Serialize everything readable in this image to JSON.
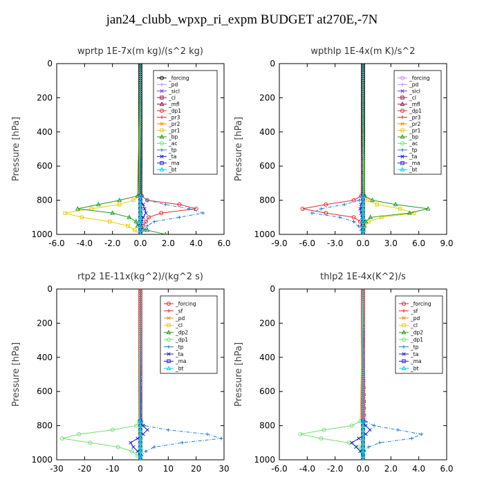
{
  "figure_title": "jan24_clubb_wpxp_ri_expm  BUDGET at270E,-7N",
  "colors": {
    "forcing": "#000000",
    "pd": "#c58cf0",
    "sicl": "#7a3ed8",
    "cl_top": "#8a1a4a",
    "mfl": "#8a1a4a",
    "dp1_top": "#e8242c",
    "pr3": "#e8242c",
    "pr2": "#f08a00",
    "pr1": "#e6cf00",
    "bp": "#1e9a1e",
    "ac": "#7fd87f",
    "tp": "#1e7fd0",
    "ta": "#1a1ad8",
    "ma": "#1a1ad8",
    "bt": "#00d8d8",
    "bottom_forcing": "#e8242c",
    "sf": "#e8242c",
    "bottom_pd": "#f08a00",
    "bottom_cl": "#e6cf00",
    "dp2": "#1e9a1e",
    "dp1": "#6fe06f",
    "bottom_tp": "#1e7fd0",
    "bottom_ta": "#1a1ad8"
  },
  "chart_data": [
    {
      "type": "line",
      "title": "wprtp   1E-7x(m kg)/(s^2 kg)",
      "ylabel": "Pressure [hPa]",
      "xlim": [
        -6,
        6
      ],
      "ylim": [
        1000,
        0
      ],
      "xticks": [
        "-6.0",
        "-4.0",
        "-2.0",
        "0.0",
        "2.0",
        "4.0",
        "6.0"
      ],
      "yticks": [
        "0",
        "200",
        "400",
        "600",
        "800",
        "1000"
      ],
      "legend_position": "top-right",
      "pressure": [
        775,
        800,
        825,
        850,
        875,
        900,
        925,
        950,
        975,
        1000
      ],
      "series": [
        {
          "name": "_forcing",
          "color_key": "forcing",
          "values": [
            0,
            0,
            0,
            0,
            0,
            0,
            0,
            0,
            0,
            0
          ]
        },
        {
          "name": "_pd",
          "color_key": "pd",
          "values": [
            0,
            0,
            0,
            0,
            0,
            0,
            0,
            0,
            0,
            0
          ]
        },
        {
          "name": "_sicl",
          "color_key": "sicl",
          "values": [
            0,
            0,
            0,
            0,
            0,
            0,
            0,
            0,
            0,
            0
          ]
        },
        {
          "name": "_cl",
          "color_key": "cl_top",
          "values": [
            0,
            0,
            0,
            0,
            0,
            0,
            0,
            0,
            0,
            0
          ]
        },
        {
          "name": "_mfl",
          "color_key": "mfl",
          "values": [
            0,
            0,
            0,
            0,
            0,
            0,
            0,
            0,
            0,
            0
          ]
        },
        {
          "name": "_dp1",
          "color_key": "dp1_top",
          "values": [
            0.1,
            0.5,
            2.8,
            4.0,
            1.5,
            0.6,
            0.4,
            0.2,
            0.1,
            0
          ]
        },
        {
          "name": "_pr3",
          "color_key": "pr3",
          "values": [
            0,
            0,
            0,
            0,
            0,
            0,
            0,
            0,
            0,
            0
          ]
        },
        {
          "name": "_pr2",
          "color_key": "pr2",
          "values": [
            0,
            0,
            0,
            0,
            0,
            0,
            0,
            0,
            0,
            0
          ]
        },
        {
          "name": "_pr1",
          "color_key": "pr1",
          "values": [
            -0.1,
            -0.5,
            -1.5,
            -3.5,
            -5.4,
            -4.2,
            -2.2,
            -0.9,
            -0.4,
            0
          ]
        },
        {
          "name": "_bp",
          "color_key": "bp",
          "values": [
            -0.2,
            -1.5,
            -3.0,
            -4.5,
            -2.0,
            -0.8,
            -0.3,
            -0.2,
            0.5,
            1.8
          ]
        },
        {
          "name": "_ac",
          "color_key": "ac",
          "values": [
            0,
            0,
            0,
            0,
            0,
            0,
            0,
            0,
            0,
            0
          ]
        },
        {
          "name": "_tp",
          "color_key": "tp",
          "values": [
            0.1,
            0.5,
            1.8,
            3.5,
            4.5,
            2.8,
            1.0,
            0.5,
            0.3,
            0
          ]
        },
        {
          "name": "_ta",
          "color_key": "ta",
          "values": [
            0,
            0,
            0.2,
            0.3,
            0.4,
            0.2,
            0.1,
            0.05,
            0,
            0
          ]
        },
        {
          "name": "_ma",
          "color_key": "ma",
          "values": [
            0,
            0,
            0,
            0,
            0,
            0,
            0,
            0,
            0,
            0
          ]
        },
        {
          "name": "_bt",
          "color_key": "bt",
          "values": [
            0,
            0,
            0,
            0,
            0,
            0,
            0,
            0,
            0,
            0
          ]
        }
      ]
    },
    {
      "type": "line",
      "title": "wpthlp   1E-4x(m K)/s^2",
      "ylabel": "Pressure [hPa]",
      "xlim": [
        -9,
        9
      ],
      "ylim": [
        1000,
        0
      ],
      "xticks": [
        "-9.0",
        "-6.0",
        "-3.0",
        "0.0",
        "3.0",
        "6.0",
        "9.0"
      ],
      "yticks": [
        "0",
        "200",
        "400",
        "600",
        "800",
        "1000"
      ],
      "legend_position": "top-right",
      "pressure": [
        775,
        800,
        825,
        850,
        875,
        900,
        925,
        950,
        975,
        1000
      ],
      "series": [
        {
          "name": "_forcing",
          "color_key": "pd",
          "values": [
            0,
            0,
            0,
            0,
            0,
            0,
            0,
            0,
            0,
            0
          ]
        },
        {
          "name": "_pd",
          "color_key": "pd",
          "values": [
            0,
            0,
            0,
            0,
            0,
            0,
            0,
            0,
            0,
            0
          ]
        },
        {
          "name": "_sicl",
          "color_key": "sicl",
          "values": [
            0,
            0,
            0,
            0,
            0,
            0,
            0,
            0,
            0,
            0
          ]
        },
        {
          "name": "_cl",
          "color_key": "cl_top",
          "values": [
            0,
            0,
            0,
            0,
            0,
            0,
            0,
            0,
            0,
            0
          ]
        },
        {
          "name": "_mfl",
          "color_key": "mfl",
          "values": [
            0,
            0,
            0,
            0,
            0,
            0,
            0,
            0,
            0,
            0
          ]
        },
        {
          "name": "_dp1",
          "color_key": "dp1_top",
          "values": [
            -0.2,
            -1.0,
            -4.0,
            -6.5,
            -4.0,
            -1.0,
            -0.3,
            -0.1,
            0,
            0
          ]
        },
        {
          "name": "_pr3",
          "color_key": "pr3",
          "values": [
            0,
            0,
            0,
            0,
            0,
            0,
            0,
            0,
            0,
            0
          ]
        },
        {
          "name": "_pr2",
          "color_key": "pr2",
          "values": [
            0,
            0,
            0,
            0,
            0,
            0,
            0,
            0,
            0,
            0
          ]
        },
        {
          "name": "_pr1",
          "color_key": "pr1",
          "values": [
            0.1,
            0.5,
            1.5,
            4.0,
            5.5,
            2.0,
            0.6,
            0.2,
            0.1,
            0
          ]
        },
        {
          "name": "_bp",
          "color_key": "bp",
          "values": [
            0.2,
            1.0,
            3.5,
            7.0,
            5.0,
            0.8,
            0.3,
            0.1,
            0,
            0
          ]
        },
        {
          "name": "_ac",
          "color_key": "ac",
          "values": [
            0,
            0,
            0,
            0,
            0,
            0,
            0,
            0,
            0,
            0
          ]
        },
        {
          "name": "_tp",
          "color_key": "tp",
          "values": [
            -0.1,
            -0.4,
            -2.0,
            -4.5,
            -5.5,
            -2.5,
            -1.0,
            -0.5,
            -0.2,
            0
          ]
        },
        {
          "name": "_ta",
          "color_key": "ta",
          "values": [
            0,
            0,
            -0.2,
            -0.3,
            -0.2,
            -0.1,
            0,
            0,
            0,
            0
          ]
        },
        {
          "name": "_ma",
          "color_key": "ma",
          "values": [
            0,
            0,
            0,
            0,
            0,
            0,
            0,
            0,
            0,
            0
          ]
        },
        {
          "name": "_bt",
          "color_key": "bt",
          "values": [
            0,
            0,
            0,
            0,
            0,
            0,
            0,
            0,
            0,
            0
          ]
        }
      ]
    },
    {
      "type": "line",
      "title": "rtp2   1E-11x(kg^2)/(kg^2 s)",
      "ylabel": "Pressure [hPa]",
      "xlim": [
        -30,
        30
      ],
      "ylim": [
        1000,
        0
      ],
      "xticks": [
        "-30",
        "-20",
        "-10",
        "0",
        "10",
        "20",
        "30"
      ],
      "yticks": [
        "0",
        "200",
        "400",
        "600",
        "800",
        "1000"
      ],
      "legend_position": "top-right",
      "pressure": [
        775,
        800,
        825,
        850,
        875,
        900,
        925,
        950,
        975,
        1000
      ],
      "series": [
        {
          "name": "_forcing",
          "color_key": "bottom_forcing",
          "values": [
            0,
            0,
            0,
            0,
            0,
            0,
            0,
            0,
            0,
            0
          ]
        },
        {
          "name": "_sf",
          "color_key": "sf",
          "values": [
            0,
            0,
            0,
            0,
            0,
            0,
            0,
            0,
            0,
            0
          ]
        },
        {
          "name": "_pd",
          "color_key": "bottom_pd",
          "values": [
            0,
            0,
            0,
            0,
            0,
            0,
            0,
            0,
            0,
            0
          ]
        },
        {
          "name": "_cl",
          "color_key": "bottom_cl",
          "values": [
            0,
            0,
            0,
            0,
            0,
            0,
            0,
            0,
            0,
            0
          ]
        },
        {
          "name": "_dp2",
          "color_key": "dp2",
          "values": [
            0,
            0,
            0,
            0,
            0,
            0,
            0,
            0,
            0,
            0
          ]
        },
        {
          "name": "_dp1",
          "color_key": "dp1",
          "values": [
            -0.5,
            -1.5,
            -10,
            -22,
            -28,
            -18,
            -8,
            -3,
            -1,
            0
          ]
        },
        {
          "name": "_tp",
          "color_key": "bottom_tp",
          "values": [
            0.5,
            1.5,
            10,
            24,
            29,
            15,
            5,
            2,
            0.5,
            0
          ]
        },
        {
          "name": "_ta",
          "color_key": "bottom_ta",
          "values": [
            0.2,
            0.8,
            2.5,
            1.0,
            -1.0,
            -3.5,
            -2.5,
            -1.0,
            -0.2,
            0
          ]
        },
        {
          "name": "_ma",
          "color_key": "ma",
          "values": [
            0,
            0,
            0,
            0,
            0,
            0,
            0,
            0,
            0,
            0
          ]
        },
        {
          "name": "_bt",
          "color_key": "bt",
          "values": [
            0,
            0,
            0,
            0,
            0,
            0,
            0,
            0,
            0,
            0
          ]
        }
      ]
    },
    {
      "type": "line",
      "title": "thlp2   1E-4x(K^2)/s",
      "ylabel": "Pressure [hPa]",
      "xlim": [
        -6,
        6
      ],
      "ylim": [
        1000,
        0
      ],
      "xticks": [
        "-6.0",
        "-4.0",
        "-2.0",
        "0.0",
        "2.0",
        "4.0",
        "6.0"
      ],
      "yticks": [
        "0",
        "200",
        "400",
        "600",
        "800",
        "1000"
      ],
      "legend_position": "top-right",
      "pressure": [
        775,
        800,
        825,
        850,
        875,
        900,
        925,
        950,
        975,
        1000
      ],
      "series": [
        {
          "name": "_forcing",
          "color_key": "bottom_forcing",
          "values": [
            0,
            0,
            0,
            0,
            0,
            0,
            0,
            0,
            0,
            0
          ]
        },
        {
          "name": "_sf",
          "color_key": "sf",
          "values": [
            0,
            0,
            0,
            0,
            0,
            0,
            0,
            0,
            0,
            0
          ]
        },
        {
          "name": "_pd",
          "color_key": "bottom_pd",
          "values": [
            0,
            0,
            0,
            0,
            0,
            0,
            0,
            0,
            0,
            0
          ]
        },
        {
          "name": "_cl",
          "color_key": "bottom_cl",
          "values": [
            0,
            0,
            0,
            0,
            0,
            0,
            0,
            0,
            0,
            0
          ]
        },
        {
          "name": "_dp2",
          "color_key": "dp2",
          "values": [
            0,
            0,
            0,
            0,
            0,
            0,
            0,
            0,
            0,
            0
          ]
        },
        {
          "name": "_dp1",
          "color_key": "dp1",
          "values": [
            -0.2,
            -0.8,
            -2.8,
            -4.5,
            -3.0,
            -1.0,
            -0.3,
            -0.1,
            0,
            0
          ]
        },
        {
          "name": "_tp",
          "color_key": "bottom_tp",
          "values": [
            0.2,
            0.8,
            2.5,
            4.2,
            3.5,
            1.2,
            0.4,
            0.1,
            0,
            0
          ]
        },
        {
          "name": "_ta",
          "color_key": "bottom_ta",
          "values": [
            0,
            0.2,
            0.5,
            0.2,
            -0.3,
            -0.8,
            -0.5,
            -0.2,
            0,
            0
          ]
        },
        {
          "name": "_ma",
          "color_key": "ma",
          "values": [
            0,
            0,
            0,
            0,
            0,
            0,
            0,
            0,
            0,
            0
          ]
        },
        {
          "name": "_bt",
          "color_key": "bt",
          "values": [
            0,
            0,
            0,
            0,
            0,
            0,
            0,
            0,
            0,
            0
          ]
        }
      ]
    }
  ]
}
